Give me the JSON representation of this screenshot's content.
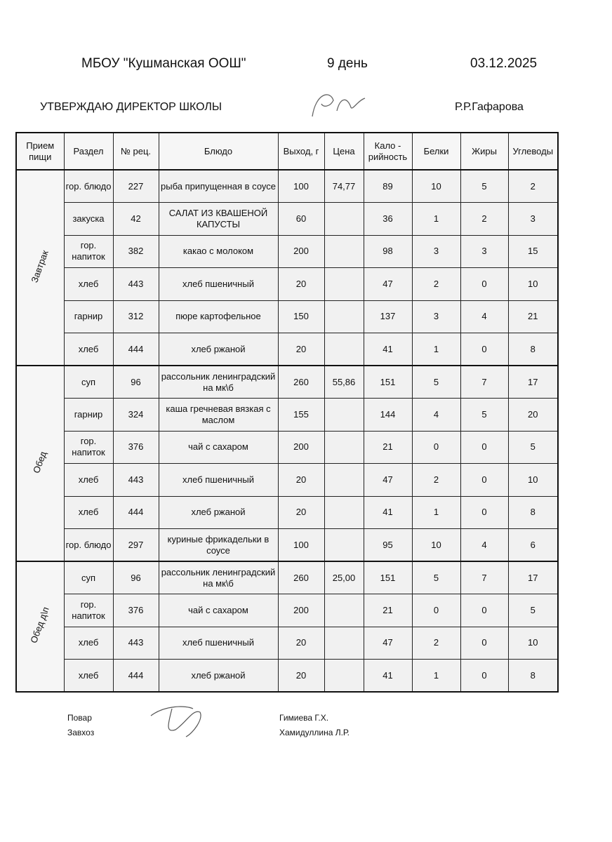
{
  "header": {
    "school": "МБОУ \"Кушманская ООШ\"",
    "day": "9 день",
    "date": "03.12.2025",
    "approve": "УТВЕРЖДАЮ ДИРЕКТОР  ШКОЛЫ",
    "director": "Р.Р.Гафарова"
  },
  "table": {
    "columns": [
      "Прием пищи",
      "Раздел",
      "№ рец.",
      "Блюдо",
      "Выход, г",
      "Цена",
      "Кало - рийность",
      "Белки",
      "Жиры",
      "Углеводы"
    ],
    "groups": [
      {
        "meal": "Завтрак",
        "rows": [
          {
            "section": "гор. блюдо",
            "recipe": 227,
            "dish": "рыба припущенная в соусе",
            "yield": 100,
            "price": "74,77",
            "kcal": 89,
            "protein": 10,
            "fat": 5,
            "carbs": 2
          },
          {
            "section": "закуска",
            "recipe": 42,
            "dish": "САЛАТ ИЗ КВАШЕНОЙ КАПУСТЫ",
            "yield": 60,
            "kcal": 36,
            "protein": 1,
            "fat": 2,
            "carbs": 3
          },
          {
            "section": "гор. напиток",
            "recipe": 382,
            "dish": "какао с молоком",
            "yield": 200,
            "kcal": 98,
            "protein": 3,
            "fat": 3,
            "carbs": 15
          },
          {
            "section": "хлеб",
            "recipe": 443,
            "dish": "хлеб пшеничный",
            "yield": 20,
            "kcal": 47,
            "protein": 2,
            "fat": 0,
            "carbs": 10
          },
          {
            "section": "гарнир",
            "recipe": 312,
            "dish": "пюре картофельное",
            "yield": 150,
            "kcal": 137,
            "protein": 3,
            "fat": 4,
            "carbs": 21
          },
          {
            "section": "хлеб",
            "recipe": 444,
            "dish": "хлеб ржаной",
            "yield": 20,
            "kcal": 41,
            "protein": 1,
            "fat": 0,
            "carbs": 8
          }
        ]
      },
      {
        "meal": "Обед",
        "rows": [
          {
            "section": "суп",
            "recipe": 96,
            "dish": "рассольник ленинградский на мк\\б",
            "yield": 260,
            "price": "55,86",
            "kcal": 151,
            "protein": 5,
            "fat": 7,
            "carbs": 17
          },
          {
            "section": "гарнир",
            "recipe": 324,
            "dish": "каша гречневая вязкая с маслом",
            "yield": 155,
            "kcal": 144,
            "protein": 4,
            "fat": 5,
            "carbs": 20
          },
          {
            "section": "гор. напиток",
            "recipe": 376,
            "dish": "чай с сахаром",
            "yield": 200,
            "kcal": 21,
            "protein": 0,
            "fat": 0,
            "carbs": 5
          },
          {
            "section": "хлеб",
            "recipe": 443,
            "dish": "хлеб пшеничный",
            "yield": 20,
            "kcal": 47,
            "protein": 2,
            "fat": 0,
            "carbs": 10
          },
          {
            "section": "хлеб",
            "recipe": 444,
            "dish": "хлеб ржаной",
            "yield": 20,
            "kcal": 41,
            "protein": 1,
            "fat": 0,
            "carbs": 8
          },
          {
            "section": "гор. блюдо",
            "recipe": 297,
            "dish": "куриные фрикадельки в соусе",
            "yield": 100,
            "kcal": 95,
            "protein": 10,
            "fat": 4,
            "carbs": 6
          }
        ]
      },
      {
        "meal": "Обед д\\п",
        "rows": [
          {
            "section": "суп",
            "recipe": 96,
            "dish": "рассольник ленинградский на мк\\б",
            "yield": 260,
            "price": "25,00",
            "kcal": 151,
            "protein": 5,
            "fat": 7,
            "carbs": 17
          },
          {
            "section": "гор. напиток",
            "recipe": 376,
            "dish": "чай с сахаром",
            "yield": 200,
            "kcal": 21,
            "protein": 0,
            "fat": 0,
            "carbs": 5
          },
          {
            "section": "хлеб",
            "recipe": 443,
            "dish": "хлеб пшеничный",
            "yield": 20,
            "kcal": 47,
            "protein": 2,
            "fat": 0,
            "carbs": 10
          },
          {
            "section": "хлеб",
            "recipe": 444,
            "dish": "хлеб ржаной",
            "yield": 20,
            "kcal": 41,
            "protein": 1,
            "fat": 0,
            "carbs": 8
          }
        ]
      }
    ]
  },
  "footer": {
    "cook_role": "Повар",
    "cook": "Гимиева Г.Х.",
    "keeper_role": "Завхоз",
    "keeper": "Хамидуллина Л.Р."
  }
}
